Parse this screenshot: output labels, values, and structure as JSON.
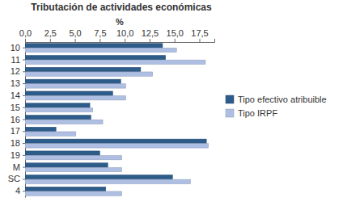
{
  "chart_data": {
    "type": "bar",
    "orientation": "horizontal",
    "title": "Tributación de actividades económicas",
    "x_label": "%",
    "categories": [
      "10",
      "11",
      "12",
      "13",
      "14",
      "15",
      "16",
      "17",
      "18",
      "19",
      "M",
      "SC",
      "4"
    ],
    "series": [
      {
        "name": "Tipo efectivo atribuible",
        "color": "#2e5c8a",
        "values": [
          13.8,
          14.1,
          11.6,
          9.6,
          8.8,
          6.5,
          6.6,
          3.1,
          18.2,
          7.5,
          8.3,
          14.8,
          8.1
        ]
      },
      {
        "name": "Tipo IRPF",
        "color": "#aebfe3",
        "values": [
          15.2,
          18.1,
          12.8,
          10.1,
          10.1,
          6.8,
          7.8,
          5.1,
          18.4,
          9.7,
          9.7,
          16.6,
          9.7
        ]
      }
    ],
    "xlim": [
      0,
      19
    ],
    "xticks": [
      {
        "value": 0,
        "label": "0,0"
      },
      {
        "value": 2.5,
        "label": "2,5"
      },
      {
        "value": 5,
        "label": "5,0"
      },
      {
        "value": 7.5,
        "label": "7,5"
      },
      {
        "value": 10,
        "label": "10,0"
      },
      {
        "value": 12.5,
        "label": "12,5"
      },
      {
        "value": 15,
        "label": "15,0"
      },
      {
        "value": 17.5,
        "label": "17,5"
      }
    ],
    "grid": false,
    "legend": "right"
  }
}
